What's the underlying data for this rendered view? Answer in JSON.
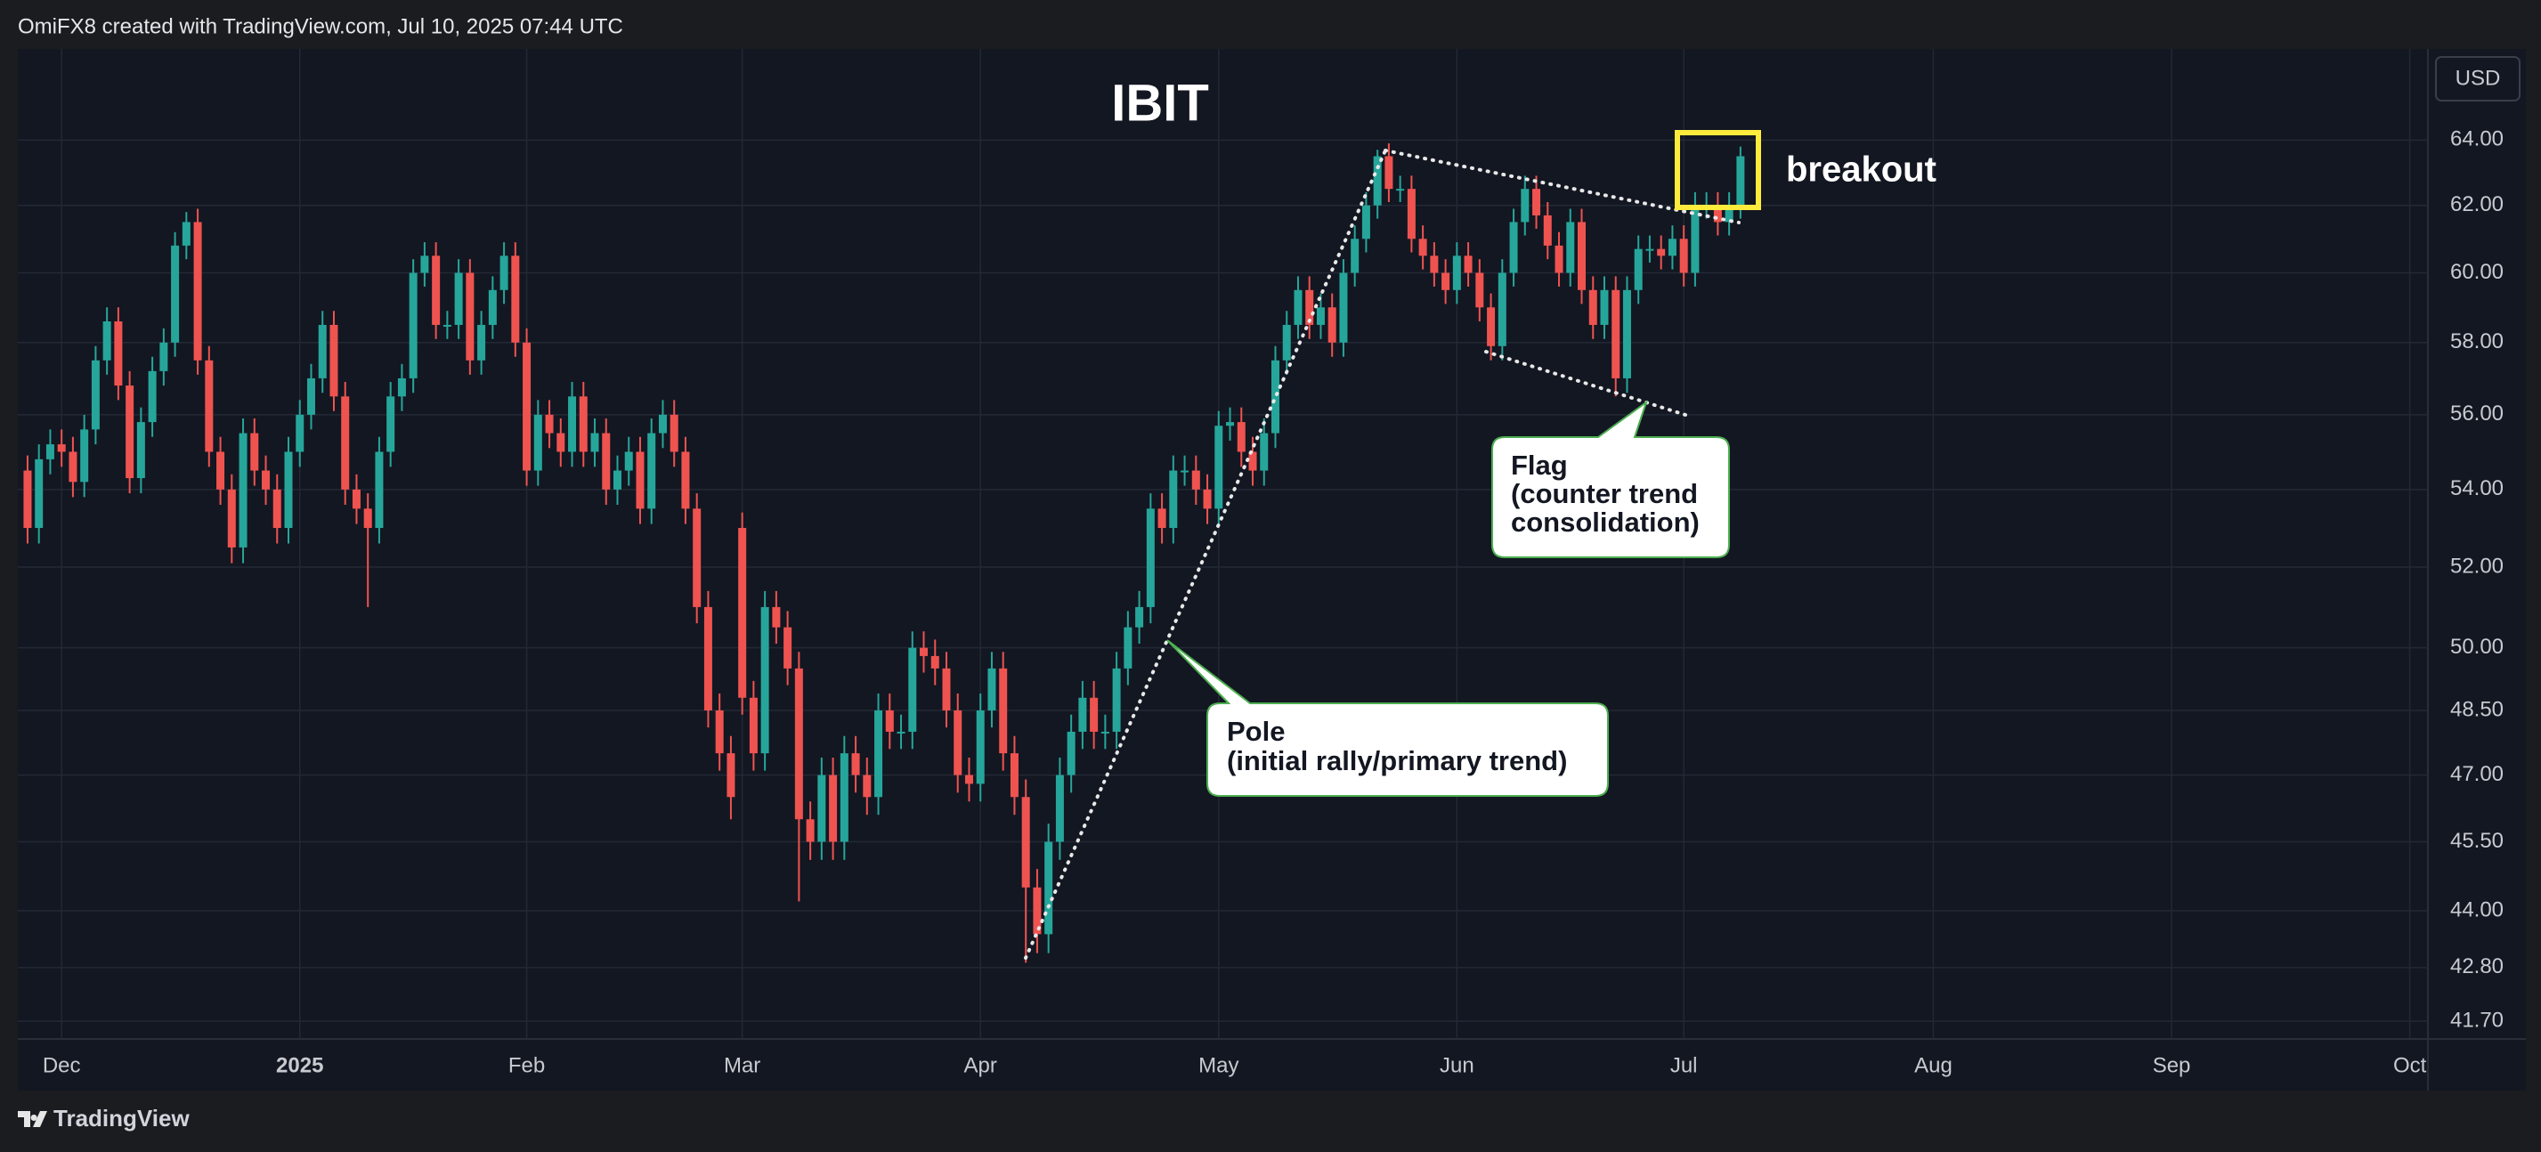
{
  "header": "OmiFX8 created with TradingView.com, Jul 10, 2025 07:44 UTC",
  "footer": "TradingView",
  "chart_data": {
    "type": "candlestick",
    "title": "IBIT",
    "currency": "USD",
    "up_color": "#26a69a",
    "down_color": "#ef5350",
    "log_scale": true,
    "grid": true,
    "xlim": [
      -0.86,
      211.6
    ],
    "xticks": [
      {
        "value": 3,
        "label": "Dec"
      },
      {
        "value": 24,
        "label": "2025"
      },
      {
        "value": 44,
        "label": "Feb"
      },
      {
        "value": 63,
        "label": "Mar"
      },
      {
        "value": 84,
        "label": "Apr"
      },
      {
        "value": 105,
        "label": "May"
      },
      {
        "value": 126,
        "label": "Jun"
      },
      {
        "value": 146,
        "label": "Jul"
      },
      {
        "value": 168,
        "label": "Aug"
      },
      {
        "value": 189,
        "label": "Sep"
      },
      {
        "value": 210,
        "label": "Oct"
      }
    ],
    "ylim": [
      41.34,
      66.9
    ],
    "yticks": [
      {
        "value": 41.7,
        "label": "41.70"
      },
      {
        "value": 42.8,
        "label": "42.80"
      },
      {
        "value": 44,
        "label": "44.00"
      },
      {
        "value": 45.5,
        "label": "45.50"
      },
      {
        "value": 47,
        "label": "47.00"
      },
      {
        "value": 48.5,
        "label": "48.50"
      },
      {
        "value": 50,
        "label": "50.00"
      },
      {
        "value": 52,
        "label": "52.00"
      },
      {
        "value": 54,
        "label": "54.00"
      },
      {
        "value": 56,
        "label": "56.00"
      },
      {
        "value": 58,
        "label": "58.00"
      },
      {
        "value": 60,
        "label": "60.00"
      },
      {
        "value": 62,
        "label": "62.00"
      },
      {
        "value": 64,
        "label": "64.00"
      }
    ],
    "open": [
      54.5,
      53.0,
      54.8,
      55.2,
      55.0,
      54.2,
      55.6,
      57.5,
      58.6,
      56.8,
      54.3,
      55.8,
      57.2,
      58.0,
      60.8,
      61.5,
      57.5,
      55.0,
      54.0,
      52.5,
      55.5,
      54.5,
      54.0,
      53.0,
      55.0,
      56.0,
      57.0,
      58.5,
      56.5,
      54.0,
      53.5,
      53.0,
      55.0,
      56.5,
      57.0,
      60.0,
      60.5,
      58.5,
      58.5,
      60.0,
      57.5,
      58.5,
      59.5,
      60.5,
      58.0,
      54.5,
      56.0,
      55.5,
      55.0,
      56.5,
      55.0,
      55.5,
      54.0,
      54.5,
      55.0,
      53.5,
      55.5,
      56.0,
      55.0,
      53.5,
      51.0,
      48.5,
      47.5,
      53.0,
      48.8,
      47.5,
      51.0,
      50.5,
      49.5,
      46.0,
      45.5,
      47.0,
      45.5,
      47.5,
      47.0,
      46.5,
      48.5,
      48.0,
      48.0,
      50.0,
      49.8,
      49.5,
      48.5,
      47.0,
      46.8,
      48.5,
      49.5,
      47.5,
      46.5,
      44.5,
      43.5,
      45.5,
      47.0,
      48.0,
      48.8,
      48.0,
      48.0,
      49.5,
      50.5,
      51.0,
      53.5,
      53.0,
      54.5,
      54.5,
      54.0,
      53.5,
      55.7,
      55.8,
      55.0,
      54.5,
      55.5,
      57.5,
      58.5,
      59.5,
      58.5,
      59.0,
      58.0,
      60.0,
      61.0,
      62.0,
      63.5,
      62.5,
      62.5,
      61.0,
      60.5,
      60.0,
      59.5,
      60.5,
      60.0,
      59.0,
      57.9,
      60.0,
      61.5,
      62.5,
      61.7,
      60.8,
      60.0,
      61.5,
      59.5,
      58.5,
      59.5,
      57.0,
      59.5,
      60.7,
      60.7,
      60.5,
      61.0,
      60.0,
      62.0,
      62.0,
      61.5,
      62.0
    ],
    "high": [
      54.9,
      55.2,
      55.6,
      55.6,
      55.4,
      56.0,
      57.9,
      59.0,
      59.0,
      57.2,
      56.2,
      57.6,
      58.4,
      61.2,
      61.8,
      61.9,
      57.9,
      55.4,
      54.4,
      55.9,
      55.9,
      54.9,
      54.4,
      55.4,
      56.4,
      57.4,
      58.9,
      58.9,
      56.9,
      54.4,
      53.9,
      55.4,
      56.9,
      57.4,
      60.4,
      60.9,
      60.9,
      58.9,
      60.4,
      60.4,
      58.9,
      59.9,
      60.9,
      60.9,
      58.4,
      56.4,
      56.4,
      55.9,
      56.9,
      56.9,
      55.9,
      55.9,
      54.9,
      55.4,
      55.4,
      55.9,
      56.4,
      56.4,
      55.4,
      53.9,
      51.4,
      48.9,
      47.9,
      53.4,
      49.2,
      51.4,
      51.4,
      50.9,
      49.9,
      46.4,
      47.4,
      47.4,
      47.9,
      47.9,
      47.4,
      48.9,
      48.9,
      48.4,
      50.4,
      50.4,
      50.2,
      49.9,
      48.9,
      47.4,
      48.9,
      49.9,
      49.9,
      47.9,
      46.9,
      44.9,
      45.9,
      47.4,
      48.4,
      49.2,
      49.2,
      48.4,
      49.9,
      50.9,
      51.4,
      53.9,
      53.9,
      54.9,
      54.9,
      54.9,
      54.4,
      56.1,
      56.2,
      56.2,
      55.4,
      55.9,
      57.9,
      58.9,
      59.9,
      59.9,
      59.4,
      59.4,
      60.4,
      61.4,
      62.4,
      63.7,
      63.9,
      62.9,
      62.9,
      61.4,
      60.9,
      60.4,
      60.9,
      60.9,
      60.4,
      59.4,
      60.4,
      61.9,
      62.9,
      62.9,
      62.1,
      61.2,
      61.9,
      61.9,
      59.9,
      59.9,
      59.9,
      59.9,
      61.1,
      61.1,
      61.1,
      61.4,
      61.4,
      62.4,
      62.4,
      62.4,
      62.4,
      63.8
    ],
    "low": [
      52.6,
      52.6,
      54.4,
      54.6,
      53.8,
      53.8,
      55.2,
      57.1,
      56.4,
      53.9,
      53.9,
      55.4,
      56.8,
      57.6,
      60.4,
      57.1,
      54.6,
      53.6,
      52.1,
      52.1,
      54.1,
      53.6,
      52.6,
      52.6,
      54.6,
      55.6,
      56.6,
      56.1,
      53.6,
      53.1,
      51.0,
      52.6,
      54.6,
      56.1,
      56.6,
      59.6,
      58.1,
      58.1,
      58.1,
      57.1,
      57.1,
      58.1,
      59.1,
      57.6,
      54.1,
      54.1,
      55.1,
      54.6,
      54.6,
      54.6,
      54.6,
      53.6,
      53.6,
      54.1,
      53.1,
      53.1,
      55.1,
      54.6,
      53.1,
      50.6,
      48.1,
      47.1,
      46.0,
      48.4,
      47.1,
      47.1,
      50.1,
      49.1,
      44.2,
      45.1,
      45.1,
      45.1,
      45.1,
      46.6,
      46.1,
      46.1,
      47.6,
      47.6,
      47.6,
      49.4,
      49.1,
      48.1,
      46.6,
      46.4,
      46.4,
      48.1,
      47.1,
      46.1,
      42.9,
      43.1,
      43.1,
      45.1,
      46.6,
      47.6,
      47.6,
      47.6,
      47.6,
      49.1,
      50.1,
      50.6,
      52.6,
      52.6,
      54.1,
      53.6,
      53.1,
      53.1,
      55.3,
      54.6,
      54.1,
      54.1,
      55.1,
      57.1,
      58.1,
      58.1,
      58.1,
      57.6,
      57.6,
      59.6,
      60.6,
      61.6,
      62.1,
      62.1,
      60.6,
      60.1,
      59.6,
      59.1,
      59.1,
      59.6,
      58.6,
      57.5,
      57.5,
      59.6,
      61.1,
      61.3,
      60.4,
      59.6,
      59.6,
      59.1,
      58.1,
      58.1,
      56.5,
      56.6,
      59.1,
      60.3,
      60.1,
      60.1,
      59.6,
      59.6,
      61.6,
      61.1,
      61.1,
      61.6
    ],
    "close": [
      53.0,
      54.8,
      55.2,
      55.0,
      54.2,
      55.6,
      57.5,
      58.6,
      56.8,
      54.3,
      55.8,
      57.2,
      58.0,
      60.8,
      61.5,
      57.5,
      55.0,
      54.0,
      52.5,
      55.5,
      54.5,
      54.0,
      53.0,
      55.0,
      56.0,
      57.0,
      58.5,
      56.5,
      54.0,
      53.5,
      53.0,
      55.0,
      56.5,
      57.0,
      60.0,
      60.5,
      58.5,
      58.5,
      60.0,
      57.5,
      58.5,
      59.5,
      60.5,
      58.0,
      54.5,
      56.0,
      55.5,
      55.0,
      56.5,
      55.0,
      55.5,
      54.0,
      54.5,
      55.0,
      53.5,
      55.5,
      56.0,
      55.0,
      53.5,
      51.0,
      48.5,
      47.5,
      46.5,
      48.8,
      47.5,
      51.0,
      50.5,
      49.5,
      46.0,
      45.5,
      47.0,
      45.5,
      47.5,
      47.0,
      46.5,
      48.5,
      48.0,
      48.0,
      50.0,
      49.8,
      49.5,
      48.5,
      47.0,
      46.8,
      48.5,
      49.5,
      47.5,
      46.5,
      44.5,
      43.5,
      45.5,
      47.0,
      48.0,
      48.8,
      48.0,
      48.0,
      49.5,
      50.5,
      51.0,
      53.5,
      53.0,
      54.5,
      54.5,
      54.0,
      53.5,
      55.7,
      55.8,
      55.0,
      54.5,
      55.5,
      57.5,
      58.5,
      59.5,
      58.5,
      59.0,
      58.0,
      60.0,
      61.0,
      62.0,
      63.5,
      62.5,
      62.5,
      61.0,
      60.5,
      60.0,
      59.5,
      60.5,
      60.0,
      59.0,
      57.9,
      60.0,
      61.5,
      62.5,
      61.7,
      60.8,
      60.0,
      61.5,
      59.5,
      58.5,
      59.5,
      57.0,
      59.5,
      60.7,
      60.7,
      60.5,
      61.0,
      60.0,
      62.0,
      62.0,
      61.5,
      62.0,
      63.5
    ],
    "annotations": {
      "breakout": "breakout",
      "flag": [
        "Flag",
        "(counter trend",
        "consolidation)"
      ],
      "pole": [
        "Pole",
        "(initial rally/primary trend)"
      ]
    }
  }
}
